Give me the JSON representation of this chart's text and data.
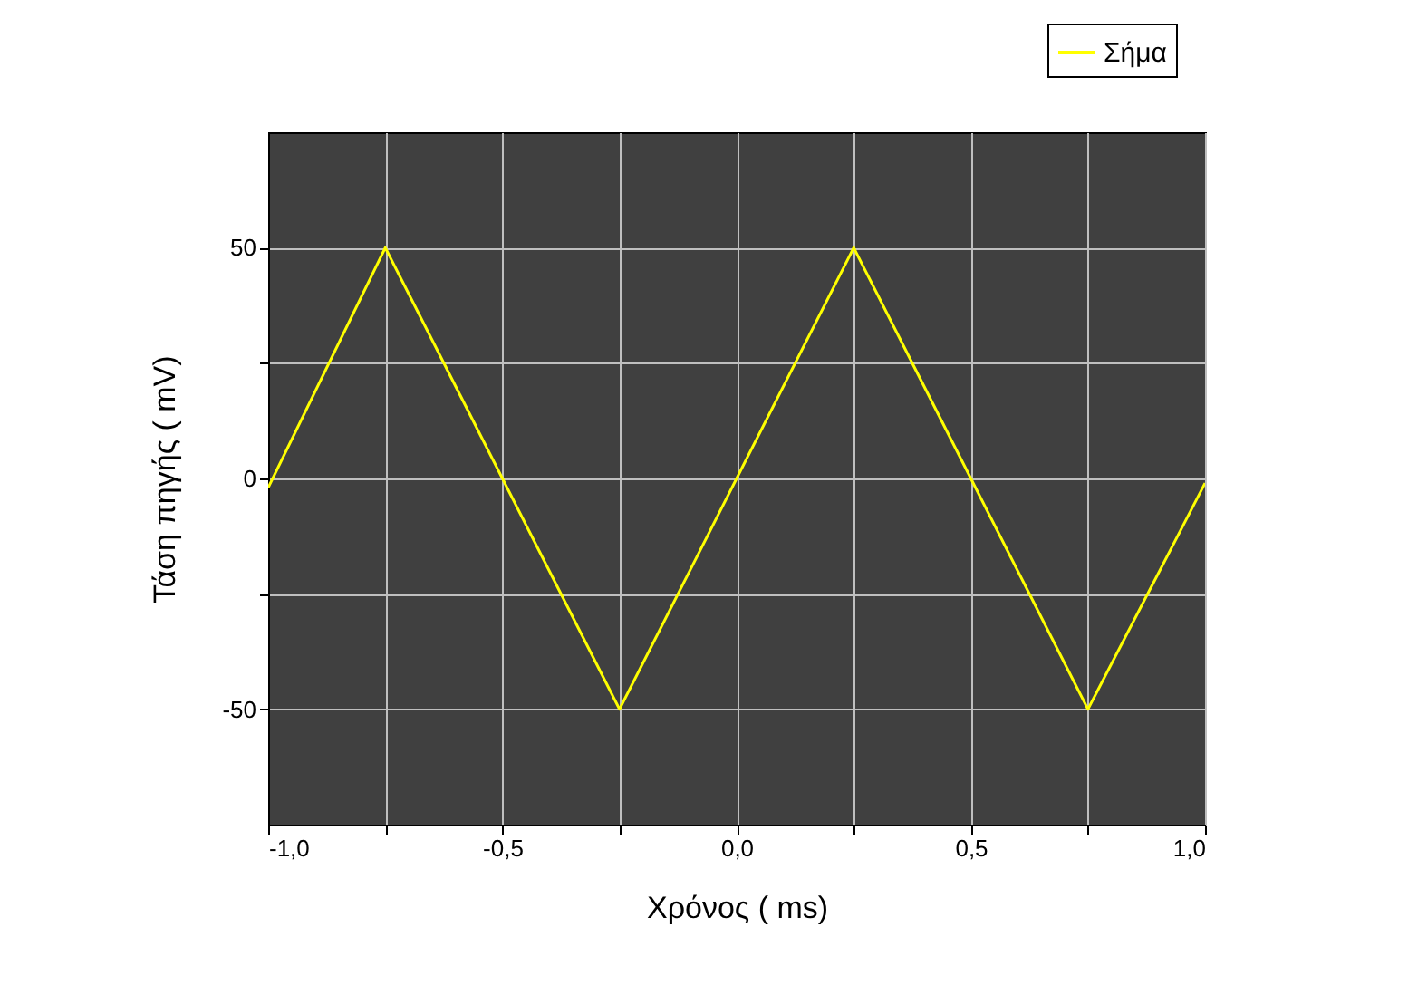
{
  "chart_data": {
    "type": "line",
    "xlabel": "Χρόνος ( ms)",
    "ylabel": "Τάση πηγής ( mV)",
    "x": [
      -1.0,
      -0.75,
      -0.25,
      0.25,
      0.75,
      1.0
    ],
    "series": [
      {
        "name": "Σήμα",
        "color": "#ffff00",
        "values": [
          -2,
          50,
          -50,
          50,
          -50,
          -1
        ]
      }
    ],
    "xlim": [
      -1.0,
      1.0
    ],
    "xticks": [
      {
        "value": -1.0,
        "label": "-1,0"
      },
      {
        "value": -0.75,
        "label": null
      },
      {
        "value": -0.5,
        "label": "-0,5"
      },
      {
        "value": -0.25,
        "label": null
      },
      {
        "value": 0,
        "label": "0,0"
      },
      {
        "value": 0.25,
        "label": null
      },
      {
        "value": 0.5,
        "label": "0,5"
      },
      {
        "value": 0.75,
        "label": null
      },
      {
        "value": 1.0,
        "label": "1,0"
      }
    ],
    "ylim": [
      -75,
      75
    ],
    "yticks": [
      -50,
      {
        "value": -25,
        "label": null
      },
      0,
      {
        "value": 25,
        "label": null
      },
      50
    ],
    "grid": true,
    "legend": "top right",
    "line_style": "solid"
  }
}
